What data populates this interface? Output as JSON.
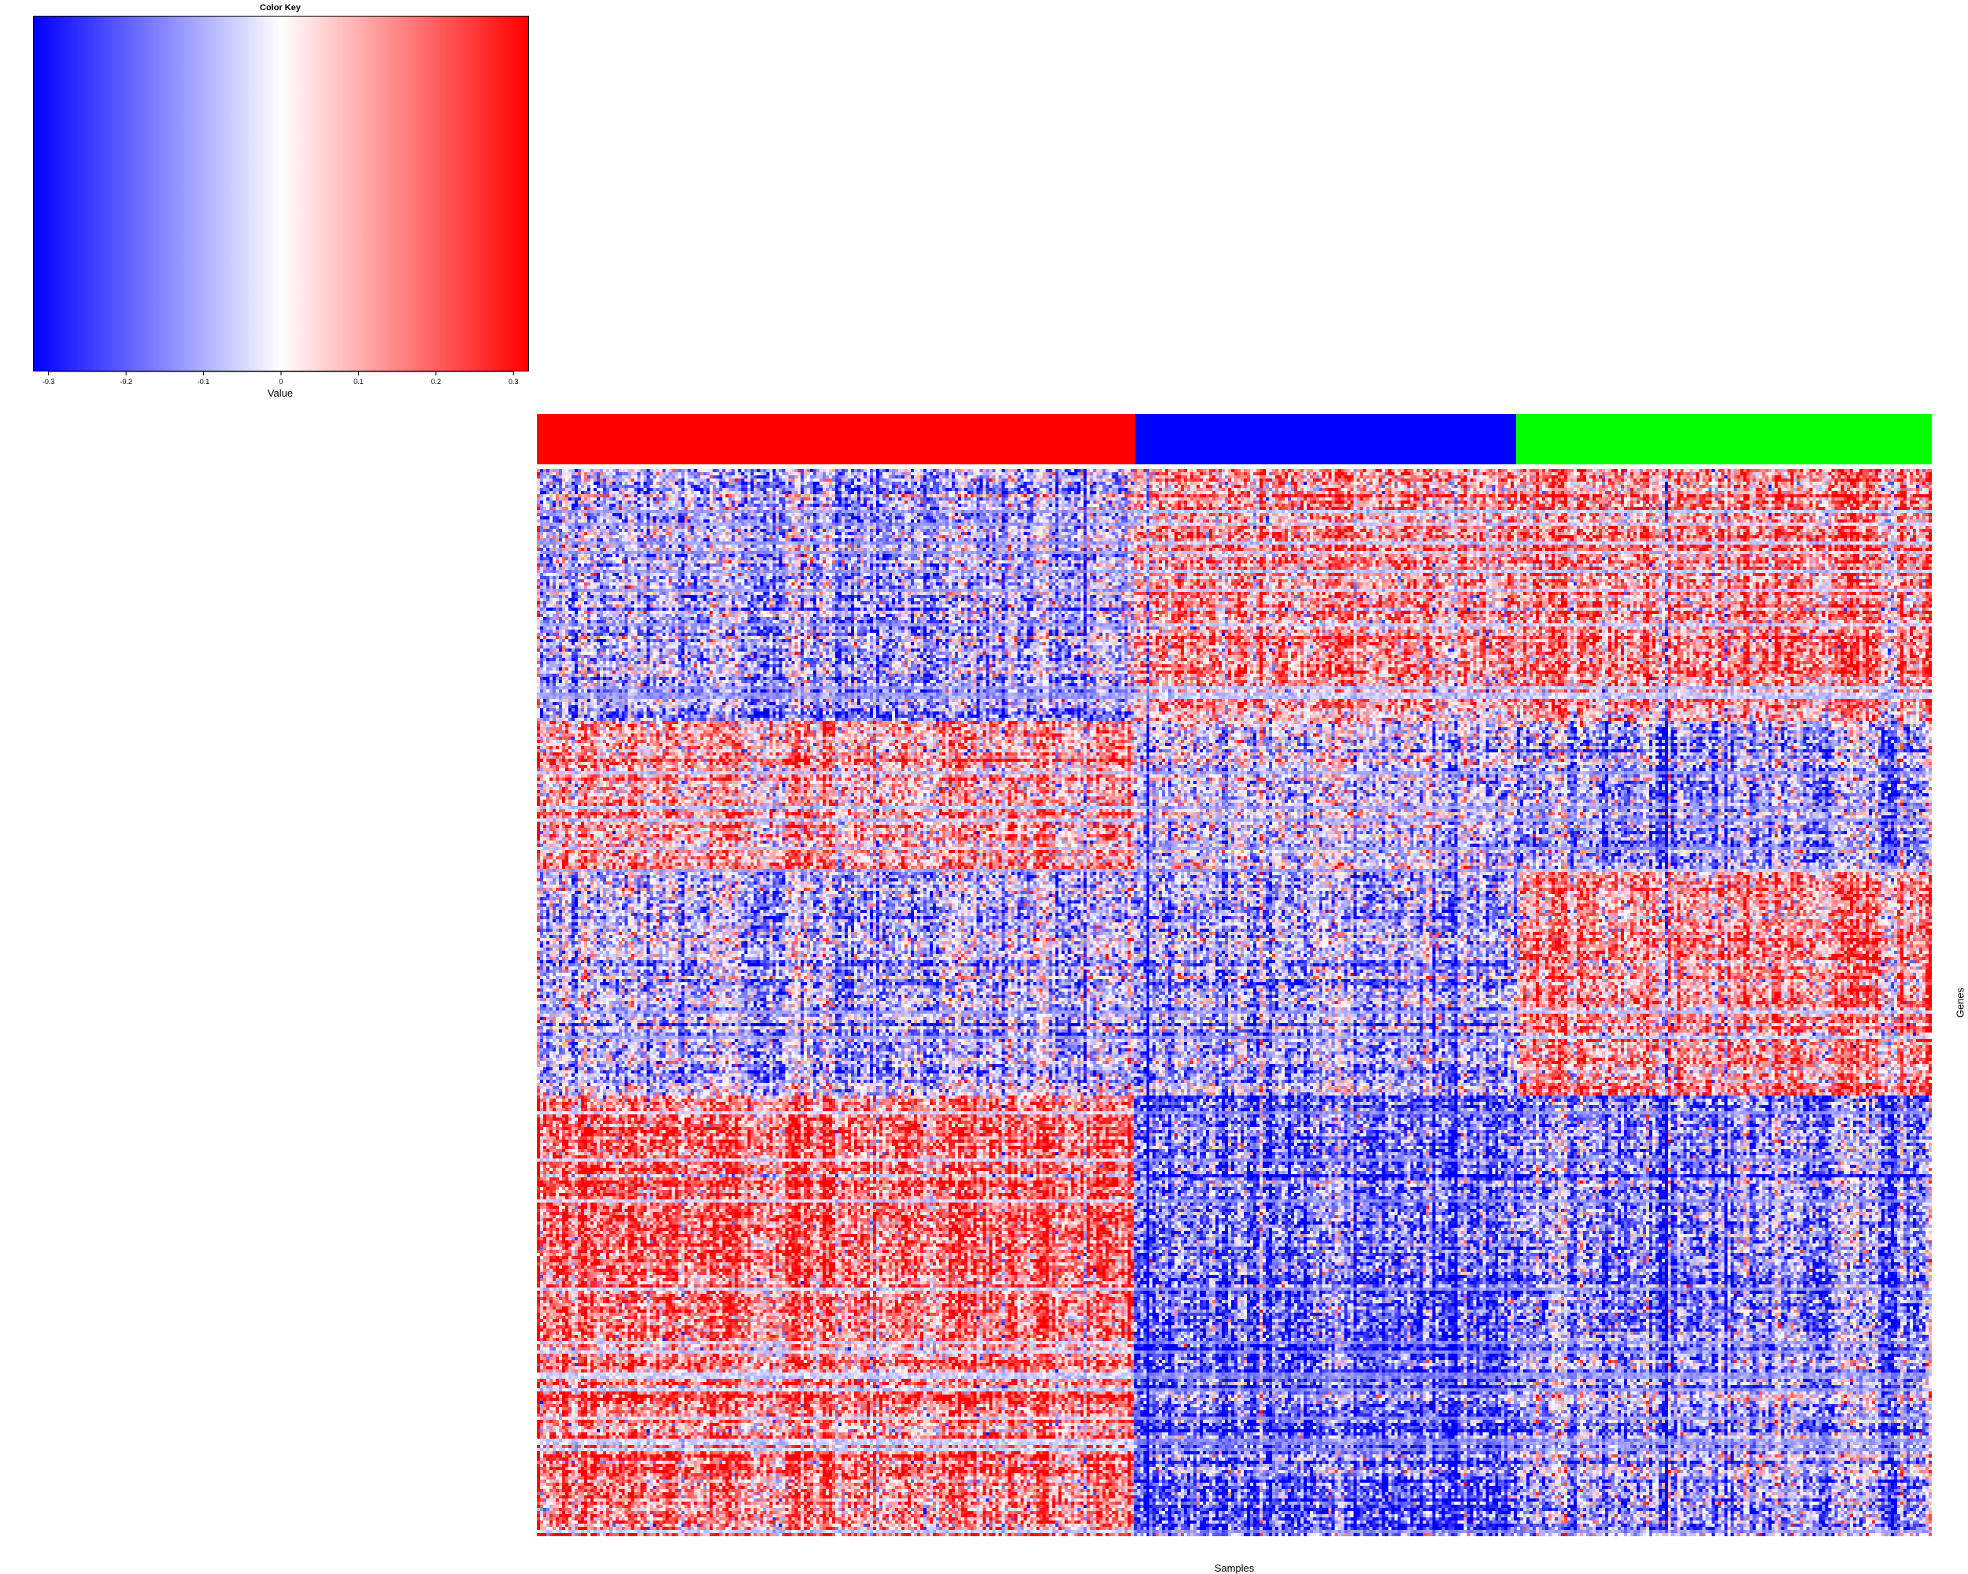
{
  "chart_data": {
    "type": "heatmap",
    "color_key": {
      "title": "Color Key",
      "xlabel": "Value",
      "range": [
        -0.32,
        0.32
      ],
      "ticks": [
        "-0.3",
        "-0.2",
        "-0.1",
        "0",
        "0.1",
        "0.2",
        "0.3"
      ],
      "tick_values": [
        -0.3,
        -0.2,
        -0.1,
        0,
        0.1,
        0.2,
        0.3
      ],
      "colors": [
        "#0000ff",
        "#ffffff",
        "#ff0000"
      ]
    },
    "xlabel": "Samples",
    "ylabel": "Genes",
    "column_groups": [
      {
        "color": "#ff0000",
        "fraction": 0.429
      },
      {
        "color": "#0000ff",
        "fraction": 0.273
      },
      {
        "color": "#00ff00",
        "fraction": 0.298
      }
    ],
    "row_blocks": [
      {
        "fraction": 0.235,
        "mean_values": [
          -0.1,
          0.12,
          0.14
        ]
      },
      {
        "fraction": 0.14,
        "mean_values": [
          0.1,
          -0.05,
          -0.12
        ]
      },
      {
        "fraction": 0.213,
        "mean_values": [
          -0.08,
          -0.1,
          0.13
        ]
      },
      {
        "fraction": 0.22,
        "mean_values": [
          0.18,
          -0.18,
          -0.14
        ]
      },
      {
        "fraction": 0.192,
        "mean_values": [
          0.16,
          -0.2,
          -0.1
        ]
      }
    ],
    "grid": false,
    "legend": "top-left"
  }
}
